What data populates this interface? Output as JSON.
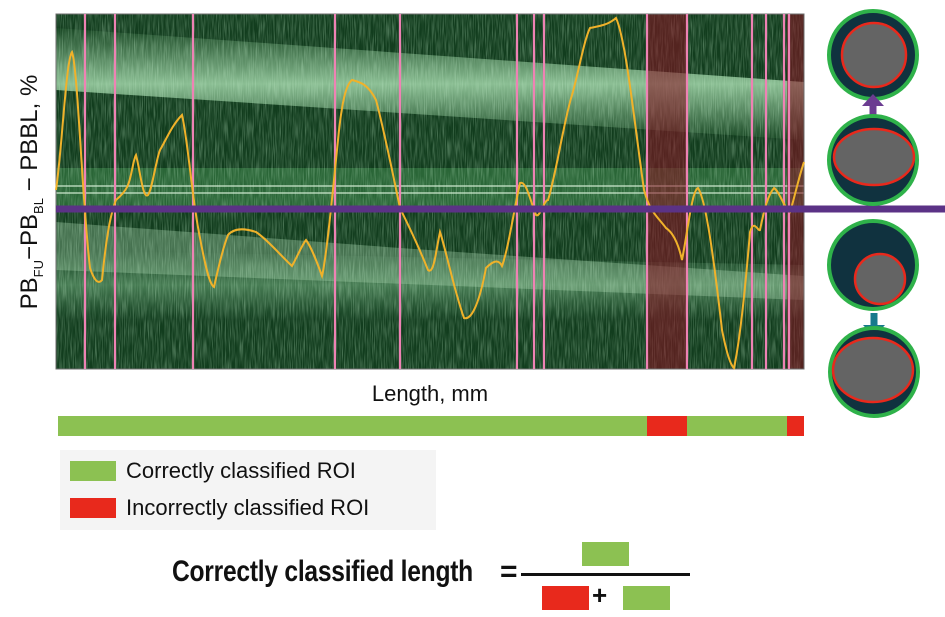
{
  "axes": {
    "ylabel_main": "PB",
    "ylabel_sub1": "FU",
    "ylabel_mid": "−PB",
    "ylabel_sub2": "BL",
    "ylabel_end": " − PBBL, %",
    "xlabel": "Length, mm"
  },
  "legend": {
    "correct_label": "Correctly classified ROI",
    "incorrect_label": "Incorrectly classified ROI",
    "correct_color": "#8cc152",
    "incorrect_color": "#e8291c"
  },
  "formula": {
    "label": "Correctly classified length",
    "equals": "=",
    "plus": "+"
  },
  "colors": {
    "curve": "#f0b22a",
    "marker_line": "#ee82b4",
    "baseline": "#5b3286",
    "vessel_wall": "#2fb24a",
    "vessel_plaque": "#10323f",
    "lumen": "#646464",
    "lumen_border": "#e8291c",
    "arrow_up": "#6b3c91",
    "arrow_down": "#177a8c"
  },
  "icons": [
    "vessel-cross-section-icon",
    "arrow-up-icon",
    "arrow-down-icon"
  ]
}
